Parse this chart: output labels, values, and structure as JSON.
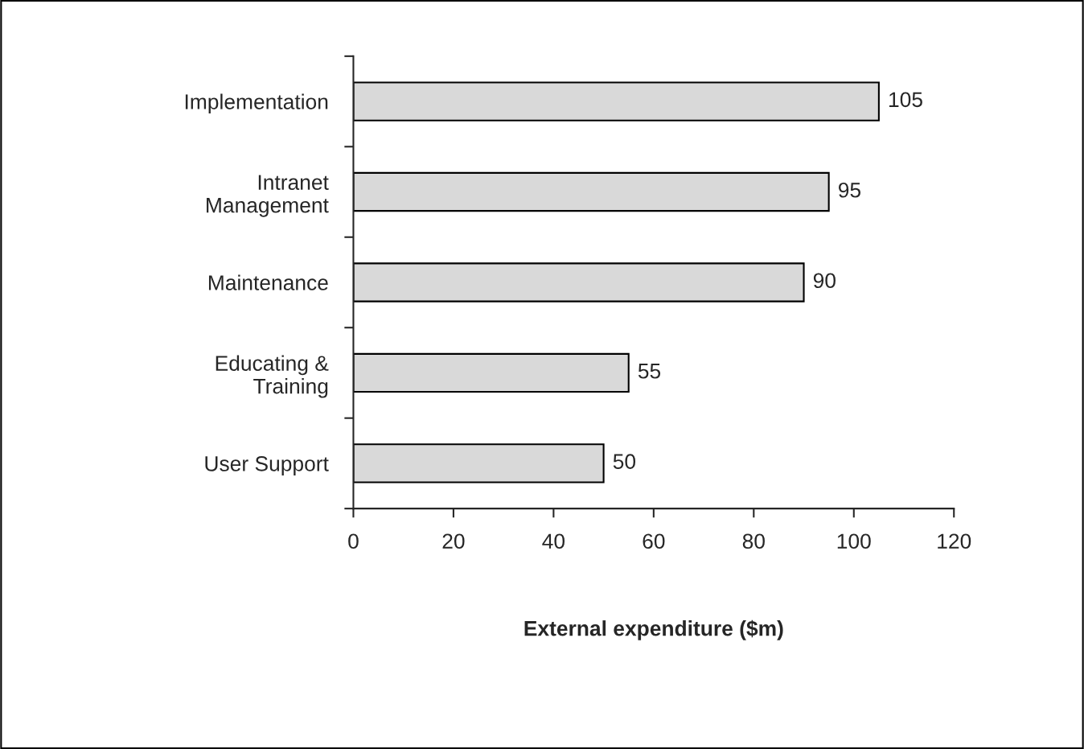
{
  "chart_data": {
    "type": "bar",
    "orientation": "horizontal",
    "xlabel": "External expenditure ($m)",
    "categories": [
      "Implementation",
      "Intranet\nManagement",
      "Maintenance",
      "Educating &\nTraining",
      "User Support"
    ],
    "values": [
      105,
      95,
      90,
      55,
      50
    ],
    "color": "#d9d9d9",
    "xlim": [
      0,
      120
    ],
    "xticks": [
      0,
      20,
      40,
      60,
      80,
      100,
      120
    ],
    "data_labels": true,
    "grid": false,
    "legend": false
  }
}
